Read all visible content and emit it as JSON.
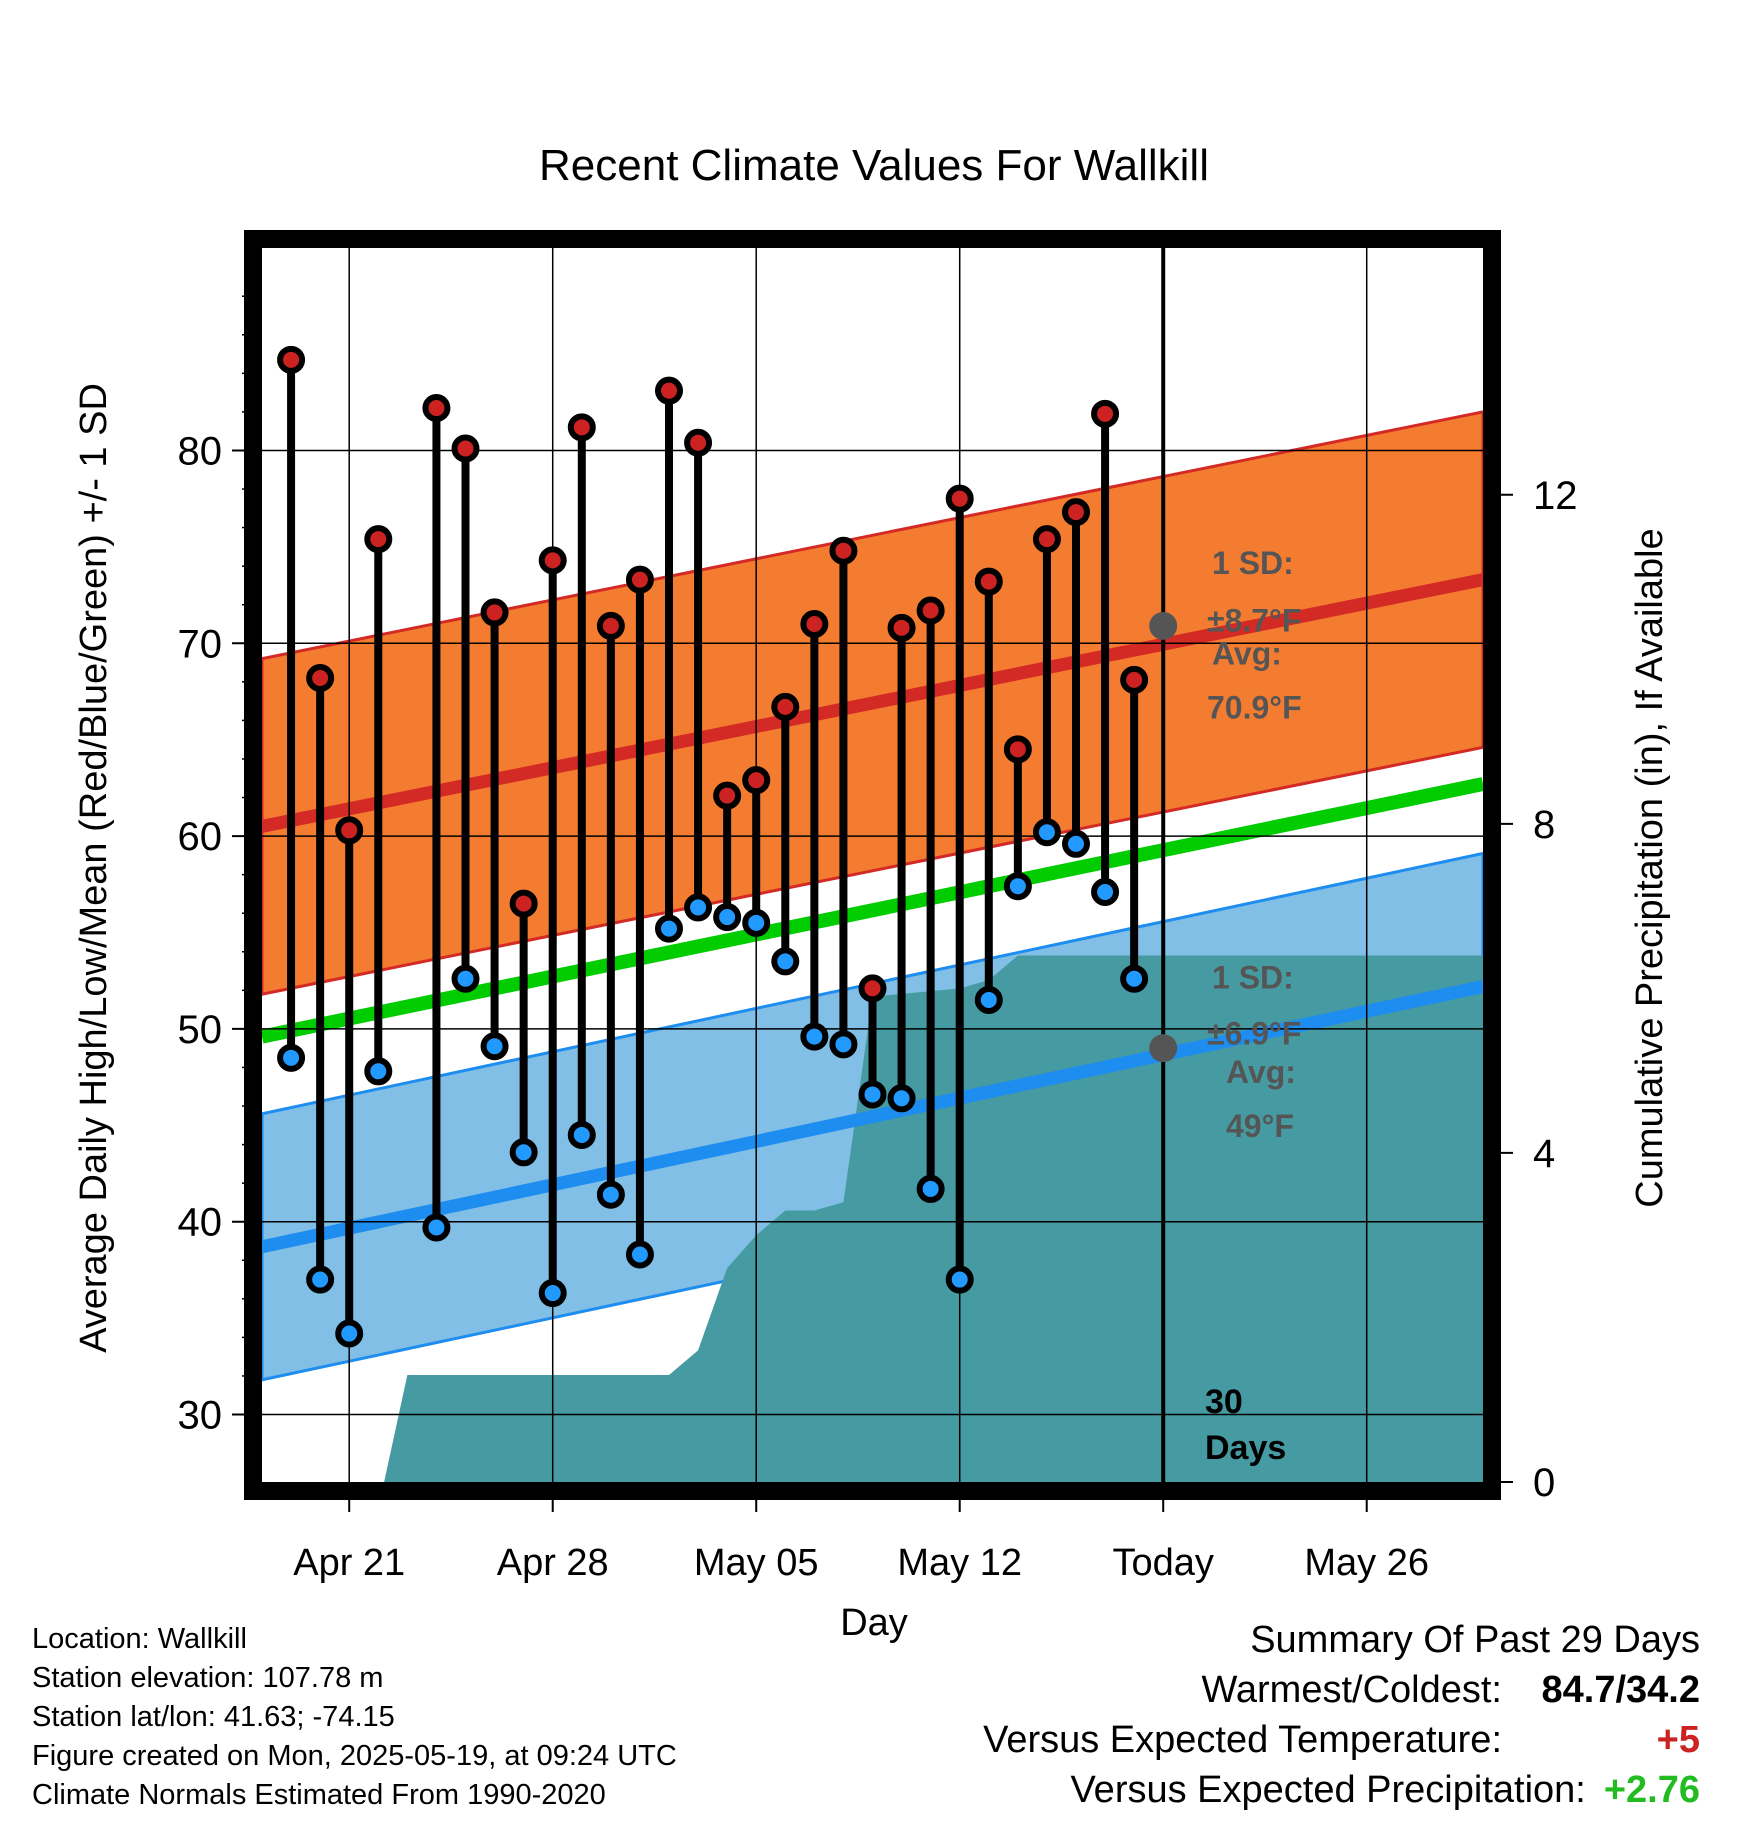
{
  "chart_data": {
    "type": "line",
    "title": "Recent Climate Values For Wallkill",
    "xlabel": "Day",
    "ylabel": "Average Daily High/Low/Mean (Red/Blue/Green) +/- 1 SD",
    "y2label": "Cumulative Precipitation (in), If Available",
    "x_range_days": [
      "2025-04-18",
      "2025-05-30"
    ],
    "ylim": [
      26.5,
      90.5
    ],
    "y2lim": [
      0,
      15
    ],
    "yticks": [
      30,
      40,
      50,
      60,
      70,
      80
    ],
    "y2ticks": [
      0,
      4,
      8,
      12
    ],
    "xticks": [
      {
        "date": "2025-04-21",
        "label": "Apr 21"
      },
      {
        "date": "2025-04-28",
        "label": "Apr 28"
      },
      {
        "date": "2025-05-05",
        "label": "May 05"
      },
      {
        "date": "2025-05-12",
        "label": "May 12"
      },
      {
        "date": "2025-05-19",
        "label": "Today"
      },
      {
        "date": "2025-05-26",
        "label": "May 26"
      }
    ],
    "grid": true,
    "today": "2025-05-19",
    "window_label": "30\nDays",
    "colors": {
      "high_band": "#f47c30",
      "high_line": "#d42a25",
      "low_band": "#82bfe6",
      "low_line": "#1e8df0",
      "mean_line": "#00cc00",
      "precip": "#469aa2",
      "high_dot": "#cc2222",
      "low_dot": "#2299ff",
      "today_dot": "#555555",
      "annotation": "#555555"
    },
    "normals": {
      "dates": [
        "2025-04-18",
        "2025-05-30"
      ],
      "high_mean": [
        60.5,
        73.3
      ],
      "high_sd": 8.7,
      "low_mean": [
        38.7,
        52.2
      ],
      "low_sd": 6.9,
      "mean_line": [
        49.6,
        62.7
      ]
    },
    "daily": [
      {
        "date": "2025-04-19",
        "high": 84.7,
        "low": 48.5
      },
      {
        "date": "2025-04-20",
        "high": 68.2,
        "low": 37.0
      },
      {
        "date": "2025-04-21",
        "high": 60.3,
        "low": 34.2
      },
      {
        "date": "2025-04-22",
        "high": 75.4,
        "low": 47.8
      },
      {
        "date": "2025-04-24",
        "high": 82.2,
        "low": 39.7
      },
      {
        "date": "2025-04-25",
        "high": 80.1,
        "low": 52.6
      },
      {
        "date": "2025-04-26",
        "high": 71.6,
        "low": 49.1
      },
      {
        "date": "2025-04-27",
        "high": 56.5,
        "low": 43.6
      },
      {
        "date": "2025-04-28",
        "high": 74.3,
        "low": 36.3
      },
      {
        "date": "2025-04-29",
        "high": 81.2,
        "low": 44.5
      },
      {
        "date": "2025-04-30",
        "high": 70.9,
        "low": 41.4
      },
      {
        "date": "2025-05-01",
        "high": 73.3,
        "low": 38.3
      },
      {
        "date": "2025-05-02",
        "high": 83.1,
        "low": 55.2
      },
      {
        "date": "2025-05-03",
        "high": 80.4,
        "low": 56.3
      },
      {
        "date": "2025-05-04",
        "high": 62.1,
        "low": 55.8
      },
      {
        "date": "2025-05-05",
        "high": 62.9,
        "low": 55.5
      },
      {
        "date": "2025-05-06",
        "high": 66.7,
        "low": 53.5
      },
      {
        "date": "2025-05-07",
        "high": 71.0,
        "low": 49.6
      },
      {
        "date": "2025-05-08",
        "high": 74.8,
        "low": 49.2
      },
      {
        "date": "2025-05-09",
        "high": 52.1,
        "low": 46.6
      },
      {
        "date": "2025-05-10",
        "high": 70.8,
        "low": 46.4
      },
      {
        "date": "2025-05-11",
        "high": 71.7,
        "low": 41.7
      },
      {
        "date": "2025-05-12",
        "high": 77.5,
        "low": 37.0
      },
      {
        "date": "2025-05-13",
        "high": 73.2,
        "low": 51.5
      },
      {
        "date": "2025-05-14",
        "high": 64.5,
        "low": 57.4
      },
      {
        "date": "2025-05-15",
        "high": 75.4,
        "low": 60.2
      },
      {
        "date": "2025-05-16",
        "high": 76.8,
        "low": 59.6
      },
      {
        "date": "2025-05-17",
        "high": 81.9,
        "low": 57.1
      },
      {
        "date": "2025-05-18",
        "high": 68.1,
        "low": 52.6
      }
    ],
    "precip_cumulative": [
      {
        "date": "2025-04-22.2",
        "value": 0.0
      },
      {
        "date": "2025-04-23.0",
        "value": 1.3
      },
      {
        "date": "2025-05-02.0",
        "value": 1.3
      },
      {
        "date": "2025-05-03.0",
        "value": 1.6
      },
      {
        "date": "2025-05-04.0",
        "value": 2.6
      },
      {
        "date": "2025-05-05.0",
        "value": 3.0
      },
      {
        "date": "2025-05-06.0",
        "value": 3.3
      },
      {
        "date": "2025-05-07.0",
        "value": 3.3
      },
      {
        "date": "2025-05-08.0",
        "value": 3.4
      },
      {
        "date": "2025-05-09.0",
        "value": 5.9
      },
      {
        "date": "2025-05-12.0",
        "value": 6.0
      },
      {
        "date": "2025-05-13.0",
        "value": 6.1
      },
      {
        "date": "2025-05-14.0",
        "value": 6.4
      },
      {
        "date": "2025-05-30.0",
        "value": 6.4
      }
    ],
    "annotations": {
      "high": {
        "sd_label": "1 SD:",
        "sd_value": "±8.7°F",
        "avg_label": "Avg:",
        "avg_value": "70.9°F"
      },
      "low": {
        "sd_label": "1 SD:",
        "sd_value": "±6.9°F",
        "avg_label": "Avg:",
        "avg_value": "49°F"
      },
      "today_high_avg": 70.9,
      "today_low_avg": 49.0
    }
  },
  "info": {
    "location": "Location: Wallkill",
    "elevation": "Station elevation: 107.78 m",
    "latlon": "Station lat/lon: 41.63; -74.15",
    "created": "Figure created on Mon, 2025-05-19, at 09:24 UTC",
    "normals": "Climate Normals Estimated From 1990-2020"
  },
  "summary": {
    "heading": "Summary Of Past 29 Days",
    "warm_cold_label": "Warmest/Coldest:",
    "warm_cold_value": "84.7/34.2",
    "temp_label": "Versus Expected Temperature:",
    "temp_value": "+5",
    "temp_color": "#cc2222",
    "precip_label": "Versus Expected Precipitation:",
    "precip_value": "+2.76",
    "precip_color": "#22bb22"
  }
}
